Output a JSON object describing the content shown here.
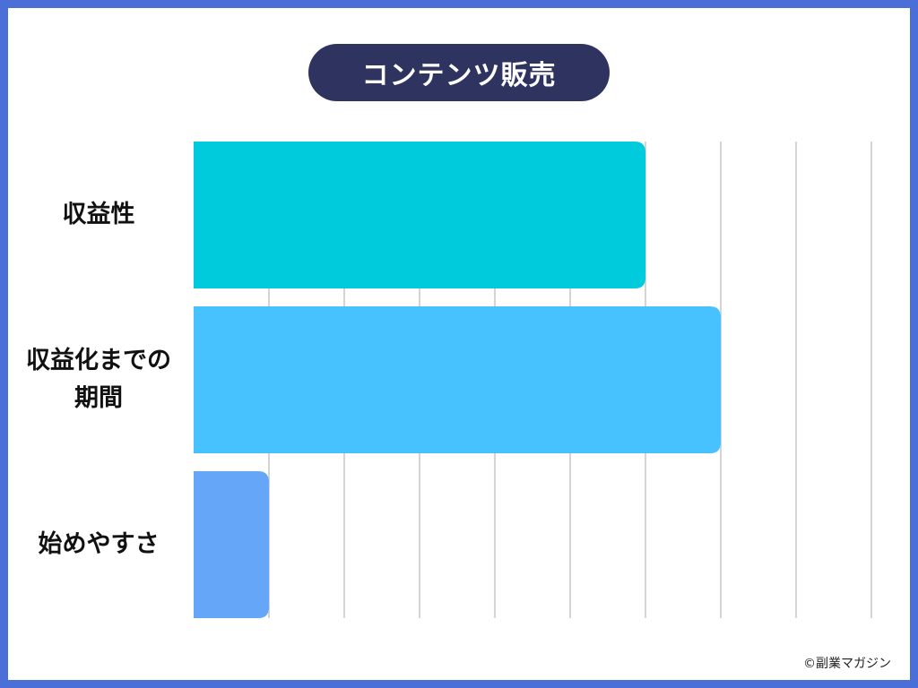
{
  "title": "コンテンツ販売",
  "credit": "©副業マガジン",
  "colors": {
    "background": "#4a6fd6",
    "title_bg": "#2f3360",
    "grid": "#d4d4d4"
  },
  "chart_data": {
    "type": "bar",
    "orientation": "horizontal",
    "categories": [
      "収益性",
      "収益化までの期間",
      "始めやすさ"
    ],
    "category_lines": [
      [
        "収益性"
      ],
      [
        "収益化までの",
        "期間"
      ],
      [
        "始めやすさ"
      ]
    ],
    "values": [
      6,
      7,
      1
    ],
    "colors": [
      "#00cbdc",
      "#48c2ff",
      "#66a6f8"
    ],
    "xlim": [
      0,
      9
    ],
    "grid": true
  }
}
